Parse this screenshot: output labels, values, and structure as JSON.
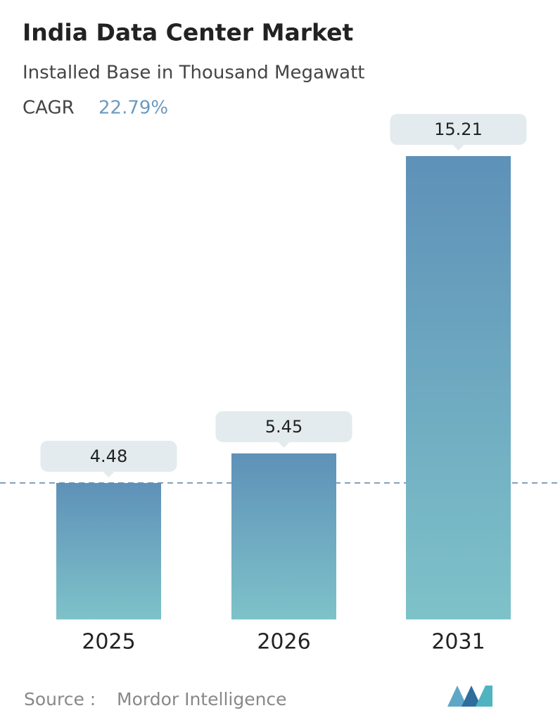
{
  "chart_data": {
    "type": "bar",
    "title": "India Data Center Market",
    "subtitle": "Installed Base in Thousand Megawatt",
    "cagr_label": "CAGR",
    "cagr_value": "22.79%",
    "categories": [
      "2025",
      "2026",
      "2031"
    ],
    "values": [
      4.48,
      5.45,
      15.21
    ],
    "color_top": "#5e91b8",
    "color_bottom": "#7ec2c9",
    "source_label": "Source :",
    "source": "Mordor Intelligence"
  }
}
